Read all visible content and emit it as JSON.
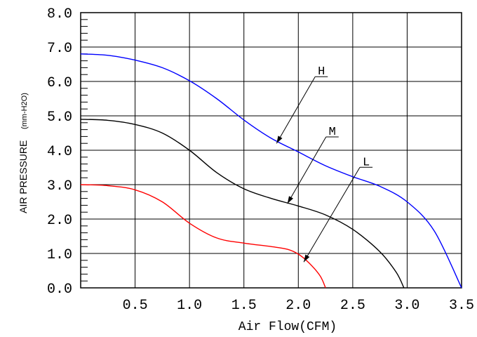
{
  "chart_data": {
    "type": "line",
    "xlabel": "Air Flow(CFM)",
    "ylabel": "AIR PRESSURE",
    "ylabel_unit": "(mm-H2O)",
    "xlim": [
      0,
      3.5
    ],
    "ylim": [
      0,
      8
    ],
    "x_ticks": [
      "0.5",
      "1.0",
      "1.5",
      "2.0",
      "2.5",
      "3.0",
      "3.5"
    ],
    "y_ticks": [
      "0.0",
      "1.0",
      "2.0",
      "3.0",
      "4.0",
      "5.0",
      "6.0",
      "7.0",
      "8.0"
    ],
    "grid": true,
    "series": [
      {
        "name": "H",
        "color": "#0000ff",
        "x": [
          0,
          0.25,
          0.5,
          0.75,
          1.0,
          1.25,
          1.5,
          1.75,
          2.0,
          2.25,
          2.5,
          2.75,
          3.0,
          3.25,
          3.5
        ],
        "y": [
          6.8,
          6.76,
          6.62,
          6.4,
          6.02,
          5.5,
          4.88,
          4.35,
          3.95,
          3.55,
          3.23,
          2.95,
          2.5,
          1.65,
          0.0
        ]
      },
      {
        "name": "M",
        "color": "#000000",
        "x": [
          0,
          0.25,
          0.5,
          0.75,
          1.0,
          1.25,
          1.5,
          1.75,
          2.0,
          2.25,
          2.5,
          2.75,
          2.9,
          2.97
        ],
        "y": [
          4.9,
          4.87,
          4.75,
          4.5,
          4.0,
          3.35,
          2.88,
          2.6,
          2.38,
          2.12,
          1.7,
          1.05,
          0.45,
          0.0
        ]
      },
      {
        "name": "L",
        "color": "#ff0000",
        "x": [
          0,
          0.25,
          0.5,
          0.75,
          1.0,
          1.25,
          1.5,
          1.75,
          1.9,
          2.0,
          2.1,
          2.2,
          2.25
        ],
        "y": [
          3.0,
          2.97,
          2.85,
          2.5,
          1.88,
          1.45,
          1.3,
          1.2,
          1.12,
          0.98,
          0.72,
          0.35,
          0.0
        ]
      }
    ],
    "annotations": [
      {
        "text": "H",
        "series": "H",
        "point_x": 1.8,
        "point_y": 4.2
      },
      {
        "text": "M",
        "series": "M",
        "point_x": 1.9,
        "point_y": 2.45
      },
      {
        "text": "L",
        "series": "L",
        "point_x": 2.05,
        "point_y": 0.75
      }
    ]
  }
}
